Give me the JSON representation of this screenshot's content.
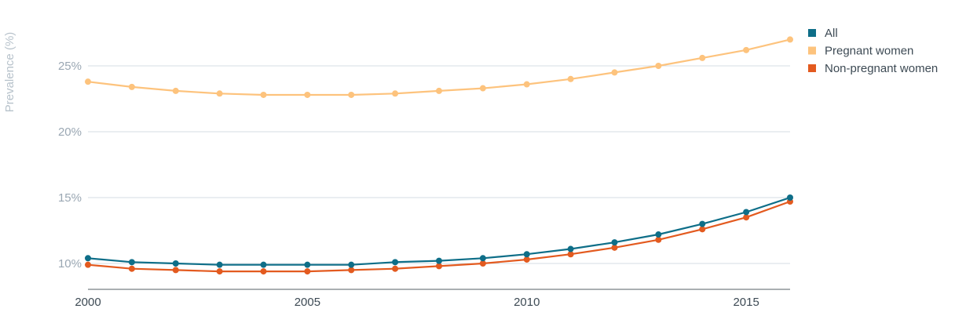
{
  "chart_data": {
    "type": "line",
    "title": "",
    "xlabel": "",
    "ylabel": "Prevalence (%)",
    "x": [
      2000,
      2001,
      2002,
      2003,
      2004,
      2005,
      2006,
      2007,
      2008,
      2009,
      2010,
      2011,
      2012,
      2013,
      2014,
      2015,
      2016
    ],
    "x_ticks": [
      {
        "value": 2000,
        "label": "2000"
      },
      {
        "value": 2005,
        "label": "2005"
      },
      {
        "value": 2010,
        "label": "2010"
      },
      {
        "value": 2015,
        "label": "2015"
      }
    ],
    "y_ticks": [
      {
        "value": 10,
        "label": "10%"
      },
      {
        "value": 15,
        "label": "15%"
      },
      {
        "value": 20,
        "label": "20%"
      },
      {
        "value": 25,
        "label": "25%"
      }
    ],
    "xlim": [
      2000,
      2016
    ],
    "ylim": [
      8,
      28
    ],
    "grid": true,
    "legend_position": "top-right",
    "series": [
      {
        "name": "All",
        "color": "#0e6e88",
        "values": [
          10.4,
          10.1,
          10.0,
          9.9,
          9.9,
          9.9,
          9.9,
          10.1,
          10.2,
          10.4,
          10.7,
          11.1,
          11.6,
          12.2,
          13.0,
          13.9,
          15.0
        ]
      },
      {
        "name": "Pregnant women",
        "color": "#fdc37d",
        "values": [
          23.8,
          23.4,
          23.1,
          22.9,
          22.8,
          22.8,
          22.8,
          22.9,
          23.1,
          23.3,
          23.6,
          24.0,
          24.5,
          25.0,
          25.6,
          26.2,
          27.0
        ]
      },
      {
        "name": "Non-pregnant women",
        "color": "#e35a1f",
        "values": [
          9.9,
          9.6,
          9.5,
          9.4,
          9.4,
          9.4,
          9.5,
          9.6,
          9.8,
          10.0,
          10.3,
          10.7,
          11.2,
          11.8,
          12.6,
          13.5,
          14.7
        ]
      }
    ]
  }
}
